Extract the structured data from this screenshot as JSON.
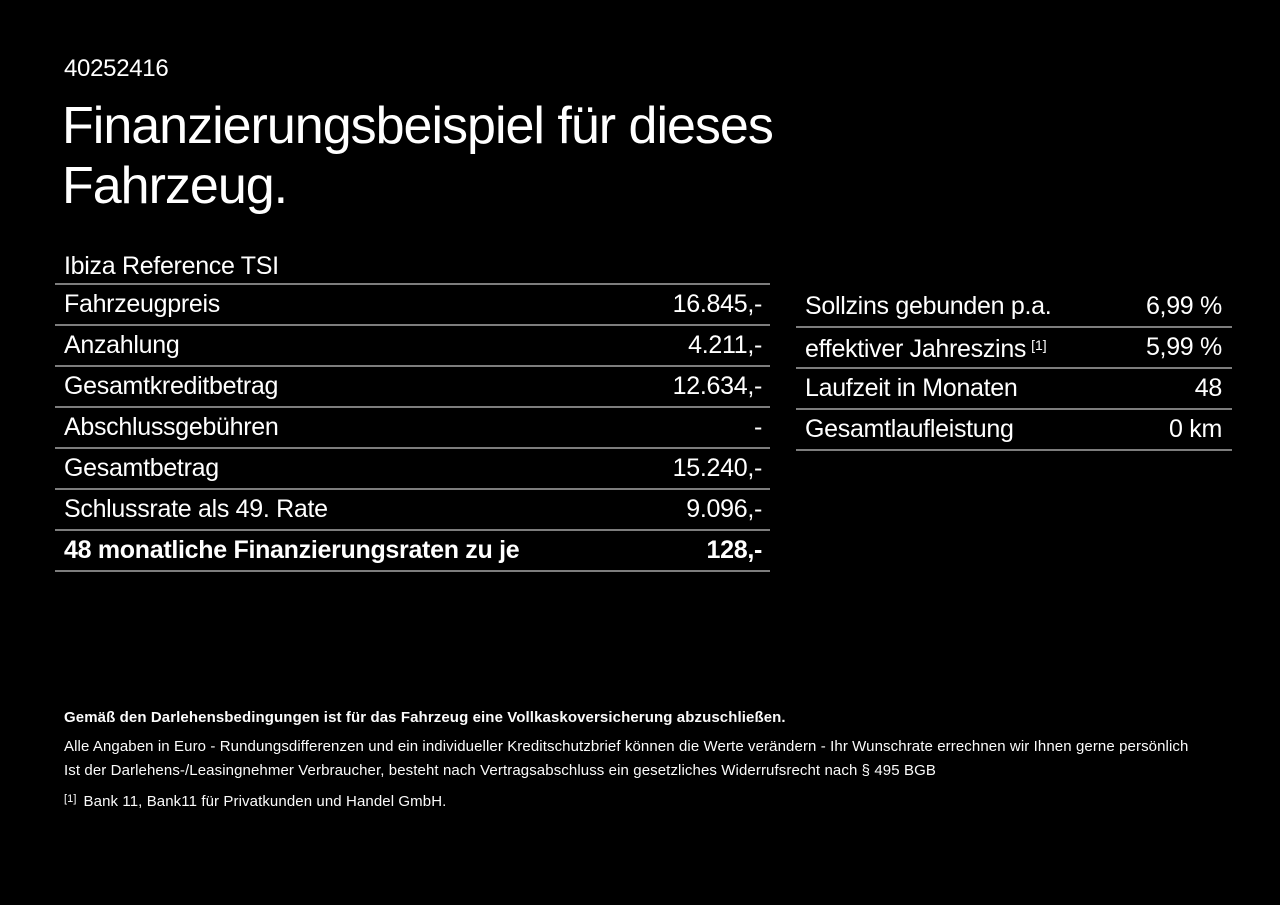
{
  "page": {
    "doc_number": "40252416",
    "title_lines": [
      "Finanzierungsbeispiel für dieses",
      "Fahrzeug."
    ],
    "vehicle_name": "Ibiza Reference TSI"
  },
  "finance_table": {
    "rows": [
      {
        "label": "Fahrzeugpreis",
        "value": "16.845,-"
      },
      {
        "label": "Anzahlung",
        "value": "4.211,-"
      },
      {
        "label": "Gesamtkreditbetrag",
        "value": "12.634,-"
      },
      {
        "label": "Abschlussgebühren",
        "value": "-"
      },
      {
        "label": "Gesamtbetrag",
        "value": "15.240,-"
      },
      {
        "label": "Schlussrate als 49. Rate",
        "value": "9.096,-"
      },
      {
        "label": "48 monatliche Finanzierungsraten zu je",
        "value": "128,-"
      }
    ]
  },
  "conditions_table": {
    "rows": [
      {
        "label": "Sollzins gebunden p.a.",
        "sup": "",
        "value": "6,99 %"
      },
      {
        "label": "effektiver Jahreszins",
        "sup": "[1]",
        "value": "5,99 %"
      },
      {
        "label": "Laufzeit in Monaten",
        "sup": "",
        "value": "48"
      },
      {
        "label": "Gesamtlaufleistung",
        "sup": "",
        "value": "0 km"
      }
    ]
  },
  "footer": {
    "bold_note": "Gemäß den Darlehensbedingungen ist für das Fahrzeug eine Vollkaskoversicherung abzuschließen.",
    "note1": "Alle Angaben in Euro - Rundungsdifferenzen und ein individueller Kreditschutzbrief können die Werte verändern - Ihr Wunschrate errechnen wir Ihnen gerne persönlich",
    "note2": "Ist der Darlehens-/Leasingnehmer Verbraucher, besteht nach Vertragsabschluss ein gesetzliches Widerrufsrecht nach § 495 BGB",
    "footnote_marker": "[1]",
    "footnote_text": "Bank 11, Bank11 für Privatkunden und Handel GmbH."
  },
  "colors": {
    "background": "#000000",
    "text": "#ffffff",
    "separator": "#7d7d7d"
  }
}
